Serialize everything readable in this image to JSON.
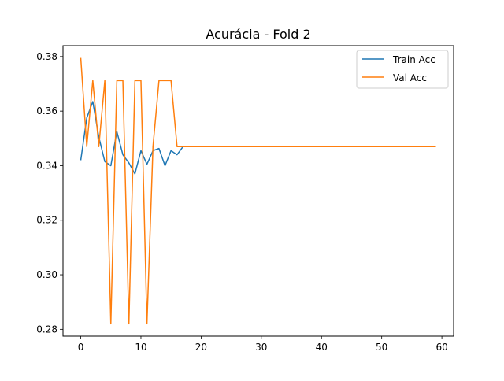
{
  "chart_data": {
    "type": "line",
    "title": "Acurácia - Fold 2",
    "xlabel": "",
    "ylabel": "",
    "xlim": [
      -2.95,
      61.95
    ],
    "ylim": [
      0.2775,
      0.384
    ],
    "xticks": [
      0,
      10,
      20,
      30,
      40,
      50,
      60
    ],
    "yticks": [
      0.28,
      0.3,
      0.32,
      0.34,
      0.36,
      0.38
    ],
    "ytick_labels": [
      "0.28",
      "0.30",
      "0.32",
      "0.34",
      "0.36",
      "0.38"
    ],
    "grid": false,
    "legend_position": "top-right",
    "series": [
      {
        "name": "Train Acc",
        "color": "#1f77b4",
        "x": [
          0,
          1,
          2,
          3,
          4,
          5,
          6,
          7,
          8,
          9,
          10,
          11,
          12,
          13,
          14,
          15,
          16,
          17,
          18,
          19,
          20,
          21,
          22,
          23,
          24,
          25,
          26,
          27,
          28,
          29,
          30,
          31,
          32,
          33,
          34,
          35,
          36,
          37,
          38,
          39,
          40,
          41,
          42,
          43,
          44,
          45,
          46,
          47,
          48,
          49,
          50,
          51,
          52,
          53,
          54,
          55,
          56,
          57,
          58,
          59
        ],
        "values": [
          0.342,
          0.3575,
          0.3635,
          0.3505,
          0.3415,
          0.34,
          0.3525,
          0.344,
          0.341,
          0.337,
          0.3455,
          0.3405,
          0.3455,
          0.3463,
          0.34,
          0.3455,
          0.344,
          0.347,
          0.347,
          0.347,
          0.347,
          0.347,
          0.347,
          0.347,
          0.347,
          0.347,
          0.347,
          0.347,
          0.347,
          0.347,
          0.347,
          0.347,
          0.347,
          0.347,
          0.347,
          0.347,
          0.347,
          0.347,
          0.347,
          0.347,
          0.347,
          0.347,
          0.347,
          0.347,
          0.347,
          0.347,
          0.347,
          0.347,
          0.347,
          0.347,
          0.347,
          0.347,
          0.347,
          0.347,
          0.347,
          0.347,
          0.347,
          0.347,
          0.347,
          0.347
        ]
      },
      {
        "name": "Val Acc",
        "color": "#ff7f0e",
        "x": [
          0,
          1,
          2,
          3,
          4,
          5,
          6,
          7,
          8,
          9,
          10,
          11,
          12,
          13,
          14,
          15,
          16,
          17,
          18,
          19,
          20,
          21,
          22,
          23,
          24,
          25,
          26,
          27,
          28,
          29,
          30,
          31,
          32,
          33,
          34,
          35,
          36,
          37,
          38,
          39,
          40,
          41,
          42,
          43,
          44,
          45,
          46,
          47,
          48,
          49,
          50,
          51,
          52,
          53,
          54,
          55,
          56,
          57,
          58,
          59
        ],
        "values": [
          0.3795,
          0.347,
          0.3712,
          0.347,
          0.3712,
          0.282,
          0.3712,
          0.3712,
          0.282,
          0.3712,
          0.3712,
          0.282,
          0.347,
          0.3712,
          0.3712,
          0.3712,
          0.347,
          0.347,
          0.347,
          0.347,
          0.347,
          0.347,
          0.347,
          0.347,
          0.347,
          0.347,
          0.347,
          0.347,
          0.347,
          0.347,
          0.347,
          0.347,
          0.347,
          0.347,
          0.347,
          0.347,
          0.347,
          0.347,
          0.347,
          0.347,
          0.347,
          0.347,
          0.347,
          0.347,
          0.347,
          0.347,
          0.347,
          0.347,
          0.347,
          0.347,
          0.347,
          0.347,
          0.347,
          0.347,
          0.347,
          0.347,
          0.347,
          0.347,
          0.347,
          0.347
        ]
      }
    ]
  }
}
